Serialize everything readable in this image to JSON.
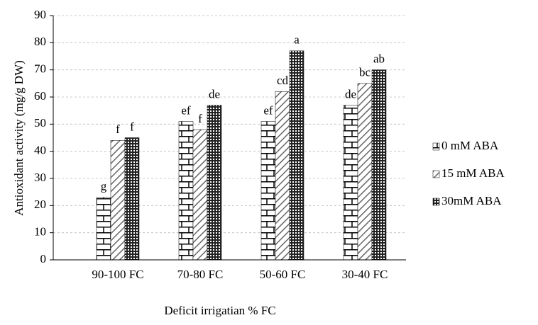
{
  "chart_data": {
    "type": "bar",
    "xlabel": "Deficit irrigatian % FC",
    "ylabel": "Antioxidant activity (mg/g DW)",
    "categories": [
      "90-100 FC",
      "70-80 FC",
      "50-60 FC",
      "30-40 FC"
    ],
    "series": [
      {
        "name": "0 mM ABA",
        "color": "#000000",
        "pattern": "brick",
        "values": [
          23,
          51,
          51,
          57
        ],
        "letters": [
          "g",
          "ef",
          "ef",
          "de"
        ]
      },
      {
        "name": "15 mM ABA",
        "color": "#000000",
        "pattern": "hatch",
        "values": [
          44,
          48,
          62,
          65
        ],
        "letters": [
          "f",
          "f",
          "cd",
          "bc"
        ]
      },
      {
        "name": "30mM ABA",
        "color": "#000000",
        "pattern": "checker",
        "values": [
          45,
          57,
          77,
          70
        ],
        "letters": [
          "f",
          "de",
          "a",
          "ab"
        ]
      }
    ],
    "ylim": [
      0,
      90
    ],
    "yticks": [
      0,
      10,
      20,
      30,
      40,
      50,
      60,
      70,
      80,
      90
    ],
    "grid": true,
    "legend": "right"
  }
}
